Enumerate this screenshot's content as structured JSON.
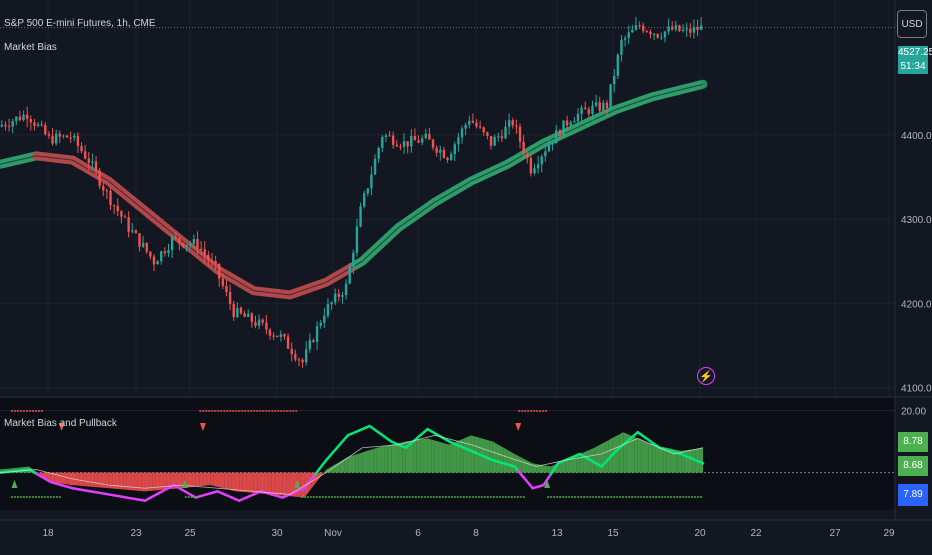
{
  "header": {
    "symbol": "S&P 500 E-mini Futures, 1h, CME",
    "indicator_main": "Market Bias",
    "indicator_sub": "Market Bias and Pullback",
    "currency_button": "USD"
  },
  "price_tags": {
    "last_price": "4527.25",
    "countdown": "51:34",
    "osc_1": "8.78",
    "osc_2": "8.68",
    "osc_3": "7.89"
  },
  "colors": {
    "background": "#131722",
    "grid": "#1e222d",
    "up_candle": "#26a69a",
    "down_candle": "#ef5350",
    "bias_bull": "#2e9e6b",
    "bias_bear": "#b3494c",
    "osc_area_green": "#4caf50",
    "osc_area_red": "#ff5252",
    "osc_line_green": "#00e676",
    "osc_line_magenta": "#e040fb",
    "tag_teal": "#26a69a",
    "tag_green": "#4caf50",
    "tag_blue": "#2962ff"
  },
  "chart_data": [
    {
      "type": "candlestick",
      "title": "S&P 500 E-mini Futures, 1h, CME",
      "x_labels": [
        "18",
        "23",
        "25",
        "30",
        "Nov",
        "6",
        "8",
        "13",
        "15",
        "20",
        "22",
        "27",
        "29"
      ],
      "y_ticks": [
        4100,
        4200,
        4300,
        4400
      ],
      "ylim": [
        4090,
        4560
      ],
      "last_price": 4527.25,
      "price_path": [
        [
          0,
          4410
        ],
        [
          8,
          4425
        ],
        [
          14,
          4395
        ],
        [
          20,
          4398
        ],
        [
          25,
          4370
        ],
        [
          30,
          4330
        ],
        [
          36,
          4290
        ],
        [
          43,
          4250
        ],
        [
          48,
          4275
        ],
        [
          55,
          4270
        ],
        [
          60,
          4240
        ],
        [
          65,
          4190
        ],
        [
          72,
          4175
        ],
        [
          78,
          4160
        ],
        [
          84,
          4130
        ],
        [
          90,
          4190
        ],
        [
          96,
          4220
        ],
        [
          100,
          4310
        ],
        [
          106,
          4400
        ],
        [
          112,
          4390
        ],
        [
          118,
          4395
        ],
        [
          124,
          4375
        ],
        [
          130,
          4420
        ],
        [
          136,
          4390
        ],
        [
          142,
          4415
        ],
        [
          147,
          4360
        ],
        [
          152,
          4390
        ],
        [
          158,
          4420
        ],
        [
          163,
          4430
        ],
        [
          168,
          4435
        ],
        [
          172,
          4510
        ],
        [
          177,
          4530
        ],
        [
          182,
          4520
        ],
        [
          186,
          4525
        ],
        [
          190,
          4522
        ],
        [
          194,
          4527
        ]
      ],
      "series": [
        {
          "type": "line",
          "points": [
            [
              0,
              4365
            ],
            [
              10,
              4375
            ],
            [
              20,
              4370
            ],
            [
              30,
              4345
            ],
            [
              40,
              4310
            ],
            [
              50,
              4275
            ],
            [
              60,
              4240
            ],
            [
              70,
              4215
            ],
            [
              80,
              4210
            ],
            [
              90,
              4225
            ],
            [
              100,
              4250
            ],
            [
              110,
              4290
            ],
            [
              120,
              4320
            ],
            [
              130,
              4345
            ],
            [
              140,
              4365
            ],
            [
              150,
              4390
            ],
            [
              160,
              4410
            ],
            [
              170,
              4430
            ],
            [
              180,
              4445
            ],
            [
              194,
              4460
            ]
          ],
          "bull_from": 98,
          "bear_between": [
            0,
            10
          ]
        }
      ]
    },
    {
      "type": "area",
      "title": "Market Bias and Pullback",
      "y_ticks": [
        20
      ],
      "ylim": [
        -12,
        24
      ],
      "zero_line": 0,
      "bias_area": [
        [
          0,
          1
        ],
        [
          8,
          2
        ],
        [
          14,
          -3
        ],
        [
          20,
          -4
        ],
        [
          30,
          -5
        ],
        [
          40,
          -6
        ],
        [
          50,
          -5
        ],
        [
          58,
          -4
        ],
        [
          65,
          -6
        ],
        [
          75,
          -7
        ],
        [
          84,
          -8
        ],
        [
          90,
          1
        ],
        [
          96,
          5
        ],
        [
          104,
          8
        ],
        [
          112,
          10
        ],
        [
          118,
          11
        ],
        [
          124,
          9
        ],
        [
          130,
          12
        ],
        [
          136,
          10
        ],
        [
          142,
          6
        ],
        [
          147,
          3
        ],
        [
          152,
          2
        ],
        [
          158,
          5
        ],
        [
          164,
          8
        ],
        [
          172,
          13
        ],
        [
          180,
          9
        ],
        [
          188,
          7
        ],
        [
          194,
          8
        ]
      ],
      "pullback_line": [
        [
          0,
          0
        ],
        [
          8,
          1
        ],
        [
          14,
          -3
        ],
        [
          20,
          -5
        ],
        [
          30,
          -7
        ],
        [
          40,
          -9
        ],
        [
          48,
          -4
        ],
        [
          54,
          -8
        ],
        [
          60,
          -6
        ],
        [
          66,
          -9
        ],
        [
          72,
          -6
        ],
        [
          78,
          -8
        ],
        [
          84,
          -5
        ],
        [
          90,
          4
        ],
        [
          96,
          12
        ],
        [
          102,
          15
        ],
        [
          108,
          10
        ],
        [
          112,
          8
        ],
        [
          118,
          14
        ],
        [
          124,
          10
        ],
        [
          130,
          7
        ],
        [
          136,
          4
        ],
        [
          142,
          2
        ],
        [
          147,
          -5
        ],
        [
          150,
          -4
        ],
        [
          154,
          3
        ],
        [
          160,
          6
        ],
        [
          166,
          2
        ],
        [
          170,
          7
        ],
        [
          176,
          13
        ],
        [
          182,
          8
        ],
        [
          188,
          6
        ],
        [
          194,
          3
        ]
      ],
      "bias_line": [
        [
          0,
          0
        ],
        [
          10,
          1
        ],
        [
          20,
          -2
        ],
        [
          30,
          -4
        ],
        [
          40,
          -5
        ],
        [
          50,
          -4
        ],
        [
          60,
          -5
        ],
        [
          70,
          -6
        ],
        [
          80,
          -7
        ],
        [
          90,
          0
        ],
        [
          100,
          8
        ],
        [
          110,
          9
        ],
        [
          120,
          12
        ],
        [
          130,
          9
        ],
        [
          140,
          5
        ],
        [
          148,
          2
        ],
        [
          156,
          4
        ],
        [
          166,
          6
        ],
        [
          176,
          11
        ],
        [
          186,
          6
        ],
        [
          194,
          8
        ]
      ]
    }
  ]
}
